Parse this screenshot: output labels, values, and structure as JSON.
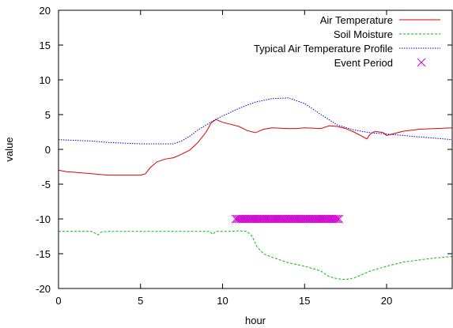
{
  "chart_data": {
    "type": "line",
    "xlabel": "hour",
    "ylabel": "value",
    "xlim": [
      0,
      24
    ],
    "ylim": [
      -20,
      20
    ],
    "xticks": [
      0,
      5,
      10,
      15,
      20
    ],
    "yticks": [
      -20,
      -15,
      -10,
      -5,
      0,
      5,
      10,
      15,
      20
    ],
    "grid": false,
    "legend_position": "top-right",
    "series": [
      {
        "name": "Air Temperature",
        "style": "solid",
        "color": "#e00000",
        "x": [
          0,
          0.5,
          1,
          2,
          3,
          4,
          5,
          5.3,
          5.6,
          6,
          6.5,
          7,
          7.5,
          8,
          8.5,
          9,
          9.3,
          9.6,
          10,
          10.5,
          11,
          11.5,
          12,
          12.5,
          13,
          14,
          14.5,
          15,
          16,
          16.5,
          17,
          17.5,
          18,
          18.5,
          18.8,
          19,
          19.3,
          19.8,
          20,
          21,
          22,
          23,
          24
        ],
        "y": [
          -3.0,
          -3.2,
          -3.3,
          -3.5,
          -3.7,
          -3.7,
          -3.7,
          -3.5,
          -2.6,
          -1.8,
          -1.4,
          -1.2,
          -0.7,
          -0.1,
          1.0,
          2.5,
          3.8,
          4.3,
          3.9,
          3.6,
          3.3,
          2.7,
          2.4,
          2.9,
          3.1,
          3.0,
          3.0,
          3.1,
          3.0,
          3.4,
          3.3,
          3.0,
          2.5,
          1.9,
          1.5,
          2.2,
          2.6,
          2.4,
          2.0,
          2.6,
          2.9,
          3.0,
          3.1
        ]
      },
      {
        "name": "Soil Moisture",
        "style": "dashed",
        "color": "#00c000",
        "x": [
          0,
          2.0,
          2.2,
          2.4,
          2.6,
          3.0,
          5,
          7,
          9.2,
          9.4,
          9.6,
          10,
          10.5,
          11,
          11.5,
          11.8,
          12.1,
          12.5,
          13,
          14,
          15,
          16,
          16.5,
          17,
          17.5,
          18,
          18.5,
          19,
          20,
          21,
          22,
          23,
          24
        ],
        "y": [
          -11.8,
          -11.8,
          -12.0,
          -12.3,
          -11.9,
          -11.8,
          -11.8,
          -11.8,
          -11.8,
          -12.2,
          -11.8,
          -11.8,
          -11.8,
          -11.7,
          -11.8,
          -12.5,
          -14.0,
          -15.0,
          -15.5,
          -16.3,
          -16.8,
          -17.5,
          -18.3,
          -18.6,
          -18.7,
          -18.5,
          -18.0,
          -17.5,
          -16.8,
          -16.2,
          -15.9,
          -15.6,
          -15.4
        ]
      },
      {
        "name": "Typical Air Temperature Profile",
        "style": "dotted",
        "color": "#0000cc",
        "x": [
          0,
          1,
          2,
          3,
          4,
          5,
          6,
          7,
          7.5,
          8,
          8.5,
          9,
          9.5,
          10,
          11,
          12,
          13,
          14,
          15,
          16,
          17,
          18,
          19,
          20,
          21,
          22,
          23,
          24
        ],
        "y": [
          1.4,
          1.3,
          1.2,
          1.0,
          0.9,
          0.8,
          0.8,
          0.8,
          1.2,
          1.9,
          2.8,
          3.5,
          4.2,
          4.8,
          5.9,
          6.8,
          7.3,
          7.4,
          6.6,
          5.0,
          3.5,
          2.8,
          2.4,
          2.2,
          2.0,
          1.8,
          1.6,
          1.4
        ]
      },
      {
        "name": "Event Period",
        "style": "points",
        "color": "#cc00cc",
        "x_start": 10.8,
        "x_end": 17.1,
        "x_step": 0.1,
        "y": -10
      }
    ]
  }
}
